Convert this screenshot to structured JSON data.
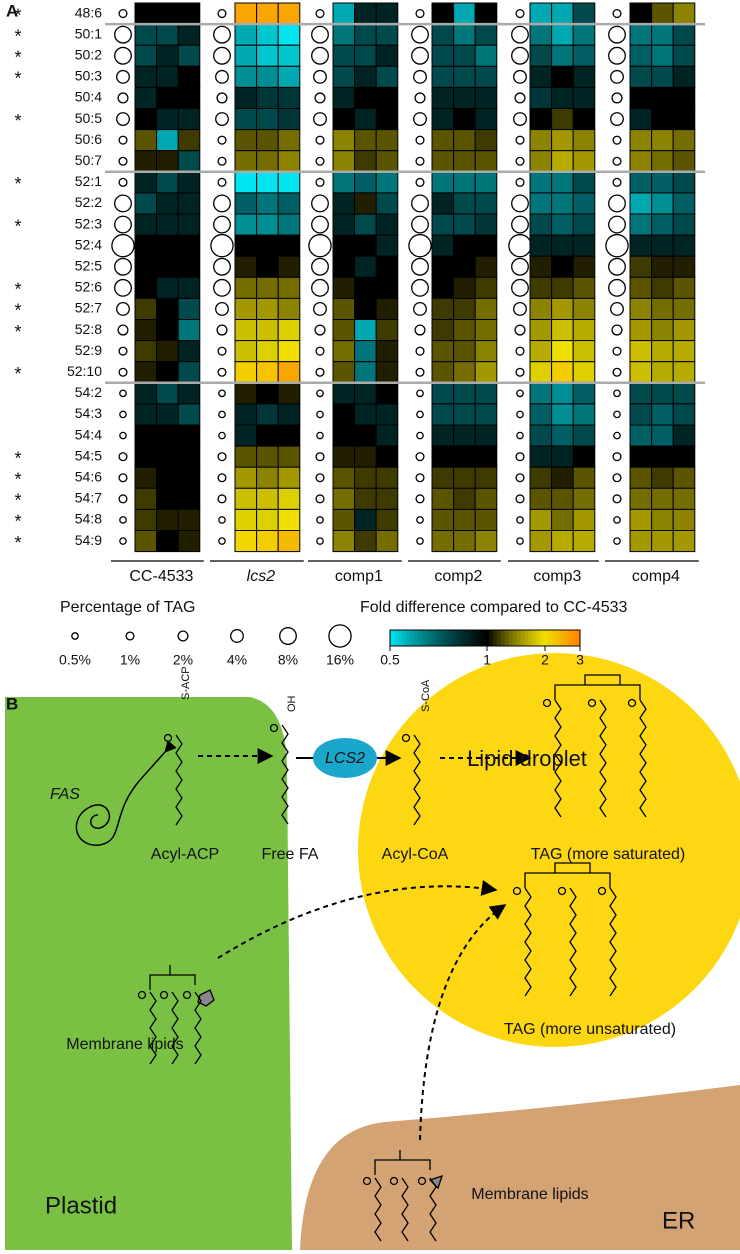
{
  "panel_a": {
    "label": "A",
    "groups": [
      "CC-4533",
      "lcs2",
      "comp1",
      "comp2",
      "comp3",
      "comp4"
    ],
    "rows": [
      {
        "label": "48:6",
        "star": "*",
        "percent": 1,
        "fold": [
          1,
          1,
          1,
          2.6,
          2.6,
          2.6,
          0.6,
          0.9,
          0.9,
          1,
          0.6,
          1,
          0.6,
          0.6,
          0.8,
          1,
          1.3,
          1.5
        ]
      },
      {
        "label": "50:1",
        "star": "*",
        "percent": 8,
        "fold": [
          0.8,
          0.8,
          0.9,
          0.6,
          0.55,
          0.5,
          0.7,
          0.8,
          0.8,
          0.8,
          0.7,
          0.8,
          0.7,
          0.6,
          0.7,
          0.7,
          0.7,
          0.8
        ]
      },
      {
        "label": "50:2",
        "star": "*",
        "percent": 8,
        "fold": [
          0.8,
          0.9,
          0.8,
          0.6,
          0.55,
          0.55,
          0.8,
          0.8,
          0.9,
          0.8,
          0.8,
          0.7,
          0.8,
          0.7,
          0.75,
          0.75,
          0.7,
          0.8
        ]
      },
      {
        "label": "50:3",
        "star": "*",
        "percent": 4,
        "fold": [
          0.9,
          0.9,
          1,
          0.65,
          0.65,
          0.6,
          0.8,
          0.9,
          0.8,
          0.8,
          0.8,
          0.8,
          0.9,
          1,
          0.9,
          0.8,
          0.8,
          0.9
        ]
      },
      {
        "label": "50:4",
        "percent": 2,
        "fold": [
          0.9,
          1,
          1,
          0.9,
          0.85,
          0.85,
          0.9,
          1,
          1,
          0.9,
          0.9,
          0.9,
          0.85,
          0.9,
          0.9,
          1,
          1,
          1
        ]
      },
      {
        "label": "50:5",
        "star": "*",
        "percent": 4,
        "fold": [
          1,
          0.9,
          0.9,
          0.8,
          0.8,
          0.85,
          1,
          0.9,
          1,
          0.9,
          1,
          0.9,
          1,
          1.2,
          1,
          0.9,
          1,
          1
        ]
      },
      {
        "label": "50:6",
        "percent": 1,
        "fold": [
          1.3,
          0.6,
          1.2,
          1.3,
          1.3,
          1.4,
          1.5,
          1.3,
          1.3,
          1.3,
          1.3,
          1.2,
          1.5,
          1.6,
          1.5,
          1.5,
          1.5,
          1.4
        ]
      },
      {
        "label": "50:7",
        "percent": 1,
        "fold": [
          1.1,
          1.1,
          0.8,
          1.4,
          1.4,
          1.5,
          1.5,
          1.2,
          1.3,
          1.3,
          1.3,
          1.3,
          1.5,
          1.7,
          1.6,
          1.5,
          1.4,
          1.3
        ]
      },
      {
        "label": "52:1",
        "star": "*",
        "percent": 1,
        "fold": [
          0.9,
          0.8,
          0.9,
          0.5,
          0.5,
          0.5,
          0.7,
          0.75,
          0.7,
          0.7,
          0.7,
          0.7,
          0.7,
          0.7,
          0.8,
          0.75,
          0.75,
          0.8
        ]
      },
      {
        "label": "52:2",
        "percent": 8,
        "fold": [
          0.8,
          0.9,
          0.9,
          0.75,
          0.7,
          0.75,
          0.9,
          1.1,
          0.8,
          0.9,
          0.8,
          0.8,
          0.7,
          0.7,
          0.75,
          0.6,
          0.65,
          0.75
        ]
      },
      {
        "label": "52:3",
        "star": "*",
        "percent": 8,
        "fold": [
          0.9,
          0.9,
          0.9,
          0.65,
          0.65,
          0.7,
          0.9,
          0.8,
          0.9,
          0.8,
          0.8,
          0.85,
          0.8,
          0.75,
          0.8,
          0.7,
          0.75,
          0.8
        ]
      },
      {
        "label": "52:4",
        "percent": 16,
        "fold": [
          1,
          1,
          1,
          1,
          1,
          1,
          1,
          1,
          0.9,
          0.9,
          1,
          1,
          0.9,
          0.9,
          0.9,
          0.9,
          0.9,
          0.9
        ]
      },
      {
        "label": "52:5",
        "percent": 8,
        "fold": [
          1,
          1,
          1,
          1.1,
          1,
          1.1,
          1,
          0.9,
          1,
          1,
          1,
          1.1,
          1.1,
          1,
          1.1,
          1.2,
          1.1,
          1.1
        ]
      },
      {
        "label": "52:6",
        "star": "*",
        "percent": 8,
        "fold": [
          1,
          0.9,
          0.9,
          1.4,
          1.4,
          1.4,
          1.1,
          1,
          1,
          1,
          1.1,
          1.2,
          1.2,
          1.2,
          1.3,
          1.3,
          1.2,
          1.3
        ]
      },
      {
        "label": "52:7",
        "star": "*",
        "percent": 4,
        "fold": [
          1.2,
          1,
          0.8,
          1.6,
          1.6,
          1.5,
          1.3,
          1,
          1.1,
          1.2,
          1.2,
          1.4,
          1.5,
          1.6,
          1.5,
          1.5,
          1.4,
          1.4
        ]
      },
      {
        "label": "52:8",
        "star": "*",
        "percent": 2,
        "fold": [
          1.1,
          1,
          0.7,
          1.8,
          1.8,
          1.9,
          1.3,
          0.6,
          1.2,
          1.2,
          1.3,
          1.4,
          1.6,
          1.8,
          1.7,
          1.6,
          1.5,
          1.6
        ]
      },
      {
        "label": "52:9",
        "percent": 1,
        "fold": [
          1.2,
          1.1,
          0.9,
          1.8,
          1.9,
          2,
          1.4,
          0.7,
          1.1,
          1.3,
          1.3,
          1.5,
          1.7,
          2,
          1.8,
          1.8,
          1.7,
          1.7
        ]
      },
      {
        "label": "52:10",
        "star": "*",
        "percent": 1,
        "fold": [
          1.1,
          1,
          0.8,
          2.2,
          2.3,
          2.6,
          1.3,
          0.7,
          1.1,
          1.3,
          1.4,
          1.6,
          1.9,
          2.2,
          1.9,
          1.8,
          1.7,
          1.7
        ]
      },
      {
        "label": "54:2",
        "percent": 0.5,
        "fold": [
          0.9,
          0.8,
          0.9,
          1.1,
          1,
          1.1,
          0.9,
          0.9,
          1,
          0.8,
          0.8,
          0.8,
          0.7,
          0.65,
          0.75,
          0.8,
          0.8,
          0.8
        ]
      },
      {
        "label": "54:3",
        "percent": 0.5,
        "fold": [
          0.9,
          0.9,
          0.8,
          0.9,
          0.85,
          0.9,
          1,
          0.9,
          0.9,
          0.8,
          0.8,
          0.8,
          0.75,
          0.65,
          0.7,
          0.8,
          0.75,
          0.8
        ]
      },
      {
        "label": "54:4",
        "percent": 0.5,
        "fold": [
          1,
          1,
          1,
          0.9,
          1,
          1,
          1,
          1,
          0.9,
          0.9,
          0.9,
          0.9,
          0.8,
          0.75,
          0.8,
          0.75,
          0.75,
          0.9
        ]
      },
      {
        "label": "54:5",
        "star": "*",
        "percent": 1,
        "fold": [
          1,
          1,
          1,
          1.3,
          1.3,
          1.3,
          1.1,
          1.1,
          1,
          1,
          1,
          1,
          0.9,
          0.9,
          1,
          1,
          1,
          1
        ]
      },
      {
        "label": "54:6",
        "star": "*",
        "percent": 1,
        "fold": [
          1.1,
          1,
          1,
          1.6,
          1.5,
          1.6,
          1.3,
          1.2,
          1.2,
          1.2,
          1.2,
          1.2,
          1.2,
          1.1,
          1.3,
          1.3,
          1.2,
          1.3
        ]
      },
      {
        "label": "54:7",
        "star": "*",
        "percent": 1,
        "fold": [
          1.2,
          1,
          1,
          1.8,
          1.8,
          1.9,
          1.4,
          1.2,
          1.2,
          1.3,
          1.2,
          1.3,
          1.3,
          1.3,
          1.4,
          1.4,
          1.4,
          1.4
        ]
      },
      {
        "label": "54:8",
        "star": "*",
        "percent": 0.5,
        "fold": [
          1.2,
          1.1,
          1.1,
          1.9,
          1.9,
          2,
          1.3,
          0.9,
          1.2,
          1.3,
          1.3,
          1.3,
          1.6,
          1.4,
          1.6,
          1.6,
          1.5,
          1.5
        ]
      },
      {
        "label": "54:9",
        "star": "*",
        "percent": 0.5,
        "fold": [
          1.3,
          1,
          1.1,
          2.1,
          2.2,
          2.4,
          1.5,
          1.2,
          1.4,
          1.4,
          1.4,
          1.5,
          1.6,
          1.7,
          1.7,
          1.6,
          1.6,
          1.6
        ]
      }
    ],
    "size_legend": {
      "title": "Percentage of TAG",
      "ticks": [
        {
          "value": 0.5,
          "label": "0.5%"
        },
        {
          "value": 1,
          "label": "1%"
        },
        {
          "value": 2,
          "label": "2%"
        },
        {
          "value": 4,
          "label": "4%"
        },
        {
          "value": 8,
          "label": "8%"
        },
        {
          "value": 16,
          "label": "16%"
        }
      ]
    },
    "color_legend": {
      "title": "Fold difference compared to CC-4533",
      "ticks": [
        0.5,
        1,
        2,
        3
      ]
    }
  },
  "panel_b": {
    "label": "B",
    "lipid_droplet": "Lipid droplet",
    "fas": "FAS",
    "s_acp": "S-ACP",
    "oh": "OH",
    "s_coa": "S-CoA",
    "acyl_acp": "Acyl-ACP",
    "free_fa": "Free FA",
    "lcs2": "LCS2",
    "acyl_coa": "Acyl-CoA",
    "tag_saturated": "TAG (more saturated)",
    "tag_unsaturated": "TAG (more unsaturated)",
    "membrane_plastid": "Membrane lipids",
    "membrane_er": "Membrane lipids",
    "plastid": "Plastid",
    "er": "ER"
  }
}
